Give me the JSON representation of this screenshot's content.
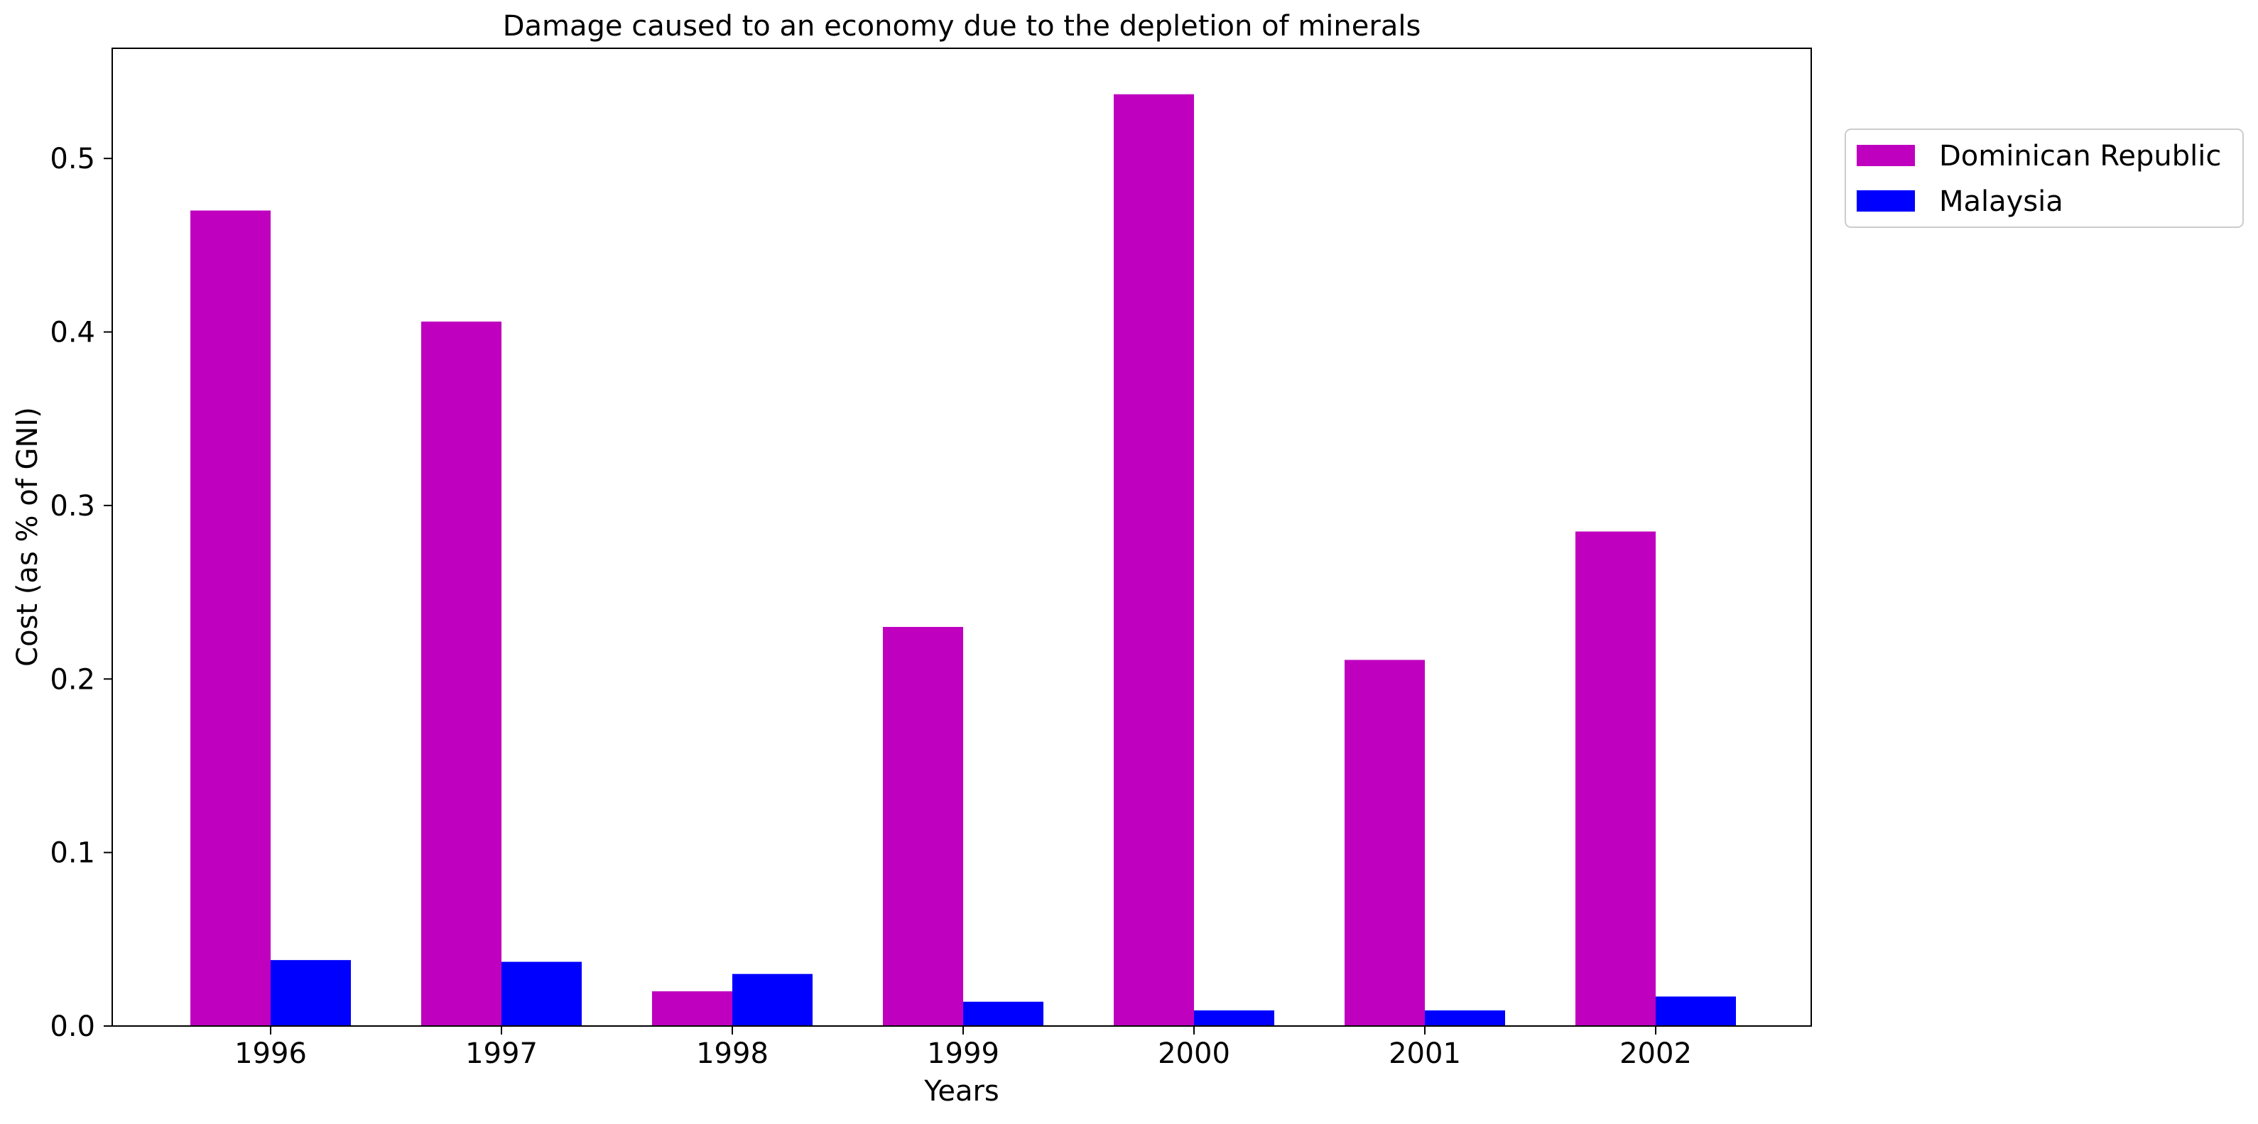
{
  "chart_data": {
    "type": "bar",
    "title": "Damage caused to an economy due to the depletion of minerals",
    "xlabel": "Years",
    "ylabel": "Cost (as % of GNI)",
    "categories": [
      "1996",
      "1997",
      "1998",
      "1999",
      "2000",
      "2001",
      "2002"
    ],
    "series": [
      {
        "name": "Dominican Republic",
        "color": "#bf00bf",
        "values": [
          0.47,
          0.406,
          0.02,
          0.23,
          0.537,
          0.211,
          0.285
        ]
      },
      {
        "name": "Malaysia",
        "color": "#0000ff",
        "values": [
          0.038,
          0.037,
          0.03,
          0.014,
          0.009,
          0.009,
          0.017
        ]
      }
    ],
    "ylim": [
      0,
      0.5635
    ],
    "yticks": [
      "0.0",
      "0.1",
      "0.2",
      "0.3",
      "0.4",
      "0.5"
    ],
    "grid": false,
    "legend_position": "outside top-right"
  }
}
